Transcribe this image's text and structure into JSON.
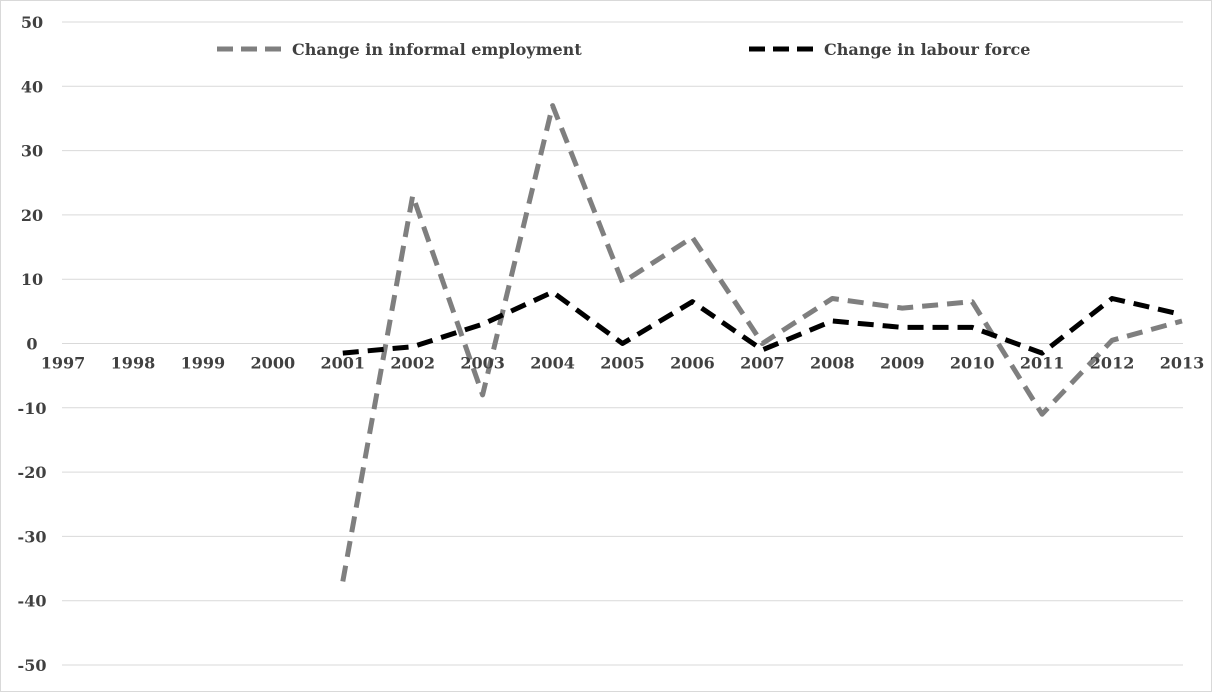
{
  "chart_data": {
    "type": "line",
    "title": "",
    "xlabel": "",
    "ylabel": "",
    "categories": [
      "1997",
      "1998",
      "1999",
      "2000",
      "2001",
      "2002",
      "2003",
      "2004",
      "2005",
      "2006",
      "2007",
      "2008",
      "2009",
      "2010",
      "2011",
      "2012",
      "2013"
    ],
    "ylim": [
      -50,
      50
    ],
    "yticks": [
      50,
      40,
      30,
      20,
      10,
      0,
      -10,
      -20,
      -30,
      -40,
      -50
    ],
    "grid": "horizontal",
    "legend_position": "top",
    "series": [
      {
        "name": "Change in informal employment",
        "color": "#7f7f7f",
        "style": "dashed",
        "values": [
          null,
          null,
          null,
          null,
          -37,
          23,
          -8,
          37,
          9.5,
          16.5,
          0,
          7,
          5.5,
          6.5,
          -11,
          0.5,
          3.5
        ]
      },
      {
        "name": "Change in labour force",
        "color": "#000000",
        "style": "dashed",
        "values": [
          null,
          null,
          null,
          null,
          -1.5,
          -0.5,
          3,
          8,
          0,
          6.5,
          -1,
          3.5,
          2.5,
          2.5,
          -1.5,
          7,
          4.5
        ]
      }
    ]
  }
}
